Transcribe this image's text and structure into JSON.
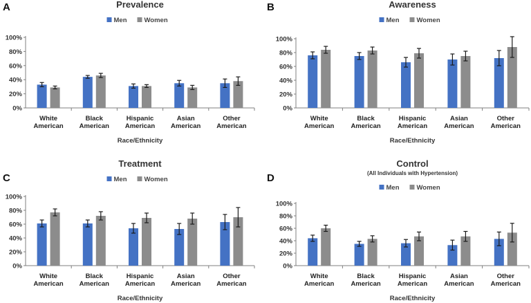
{
  "colors": {
    "men": "#4472c4",
    "women": "#8c8c8c",
    "axis": "#7f7f7f",
    "error": "#1a1a1a"
  },
  "chart_data": [
    {
      "panel": "A",
      "type": "bar",
      "title": "Prevalence",
      "subtitle": "",
      "xlabel": "Race/Ethnicity",
      "ylabel": "",
      "ylim": [
        0,
        100
      ],
      "yticks": [
        "0%",
        "20%",
        "40%",
        "60%",
        "80%",
        "100%"
      ],
      "categories": [
        [
          "White",
          "American"
        ],
        [
          "Black",
          "American"
        ],
        [
          "Hispanic",
          "American"
        ],
        [
          "Asian",
          "American"
        ],
        [
          "Other",
          "American"
        ]
      ],
      "legend": {
        "placement": "top-center",
        "entries": [
          "Men",
          "Women"
        ]
      },
      "grid": false,
      "series": [
        {
          "name": "Men",
          "values": [
            33,
            44,
            31,
            35,
            35
          ],
          "err": [
            3,
            2,
            3,
            4,
            6
          ]
        },
        {
          "name": "Women",
          "values": [
            29,
            46,
            31,
            29,
            38
          ],
          "err": [
            2,
            3,
            2,
            3,
            6
          ]
        }
      ]
    },
    {
      "panel": "B",
      "type": "bar",
      "title": "Awareness",
      "subtitle": "",
      "xlabel": "Race/Ethnicity",
      "ylabel": "",
      "ylim": [
        0,
        100
      ],
      "yticks": [
        "0%",
        "20%",
        "40%",
        "60%",
        "80%",
        "100%"
      ],
      "categories": [
        [
          "White",
          "American"
        ],
        [
          "Black",
          "American"
        ],
        [
          "Hispanic",
          "American"
        ],
        [
          "Asian",
          "American"
        ],
        [
          "Other",
          "American"
        ]
      ],
      "legend": {
        "placement": "top-center",
        "entries": [
          "Men",
          "Women"
        ]
      },
      "grid": false,
      "series": [
        {
          "name": "Men",
          "values": [
            76,
            75,
            66,
            70,
            72
          ],
          "err": [
            5,
            5,
            7,
            8,
            11
          ]
        },
        {
          "name": "Women",
          "values": [
            84,
            83,
            79,
            75,
            88
          ],
          "err": [
            5,
            5,
            7,
            7,
            15
          ]
        }
      ]
    },
    {
      "panel": "C",
      "type": "bar",
      "title": "Treatment",
      "subtitle": "",
      "xlabel": "Race/Ethnicity",
      "ylabel": "",
      "ylim": [
        0,
        100
      ],
      "yticks": [
        "0%",
        "20%",
        "40%",
        "60%",
        "80%",
        "100%"
      ],
      "categories": [
        [
          "White",
          "American"
        ],
        [
          "Black",
          "American"
        ],
        [
          "Hispanic",
          "American"
        ],
        [
          "Asian",
          "American"
        ],
        [
          "Other",
          "American"
        ]
      ],
      "legend": {
        "placement": "top-center",
        "entries": [
          "Men",
          "Women"
        ]
      },
      "grid": false,
      "series": [
        {
          "name": "Men",
          "values": [
            61,
            61,
            54,
            53,
            63
          ],
          "err": [
            5,
            5,
            7,
            8,
            11
          ]
        },
        {
          "name": "Women",
          "values": [
            77,
            72,
            69,
            68,
            70
          ],
          "err": [
            5,
            6,
            7,
            8,
            14
          ]
        }
      ]
    },
    {
      "panel": "D",
      "type": "bar",
      "title": "Control",
      "subtitle": "(All Individuals with Hypertension)",
      "xlabel": "Race/Ethnicity",
      "ylabel": "",
      "ylim": [
        0,
        100
      ],
      "yticks": [
        "0%",
        "20%",
        "40%",
        "60%",
        "80%",
        "100%"
      ],
      "categories": [
        [
          "White",
          "American"
        ],
        [
          "Black",
          "American"
        ],
        [
          "Hispanic",
          "American"
        ],
        [
          "Asian",
          "American"
        ],
        [
          "Other",
          "American"
        ]
      ],
      "legend": {
        "placement": "top-center",
        "entries": [
          "Men",
          "Women"
        ]
      },
      "grid": false,
      "series": [
        {
          "name": "Men",
          "values": [
            44,
            35,
            36,
            33,
            43
          ],
          "err": [
            5,
            4,
            6,
            8,
            11
          ]
        },
        {
          "name": "Women",
          "values": [
            60,
            43,
            47,
            47,
            53
          ],
          "err": [
            5,
            5,
            7,
            8,
            15
          ]
        }
      ]
    }
  ]
}
